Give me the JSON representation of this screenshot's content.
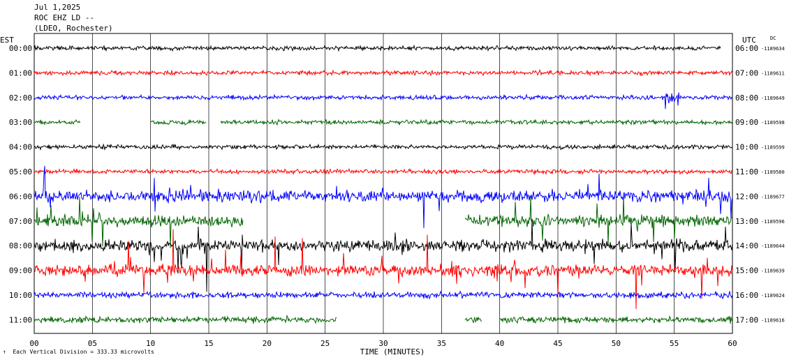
{
  "header": {
    "date": "Jul 1,2025",
    "station": "ROC EHZ LD --",
    "network": "(LDEO, Rochester)"
  },
  "footer": {
    "scale_note": "Each Vertical Division = 333.33 microvolts",
    "scale_mark": "↑"
  },
  "chart_data": {
    "type": "line",
    "title": "",
    "xlabel": "TIME (MINUTES)",
    "xlim": [
      0,
      60
    ],
    "x_ticks": [
      "00",
      "05",
      "10",
      "15",
      "20",
      "25",
      "30",
      "35",
      "40",
      "45",
      "50",
      "55",
      "60"
    ],
    "grid": true,
    "left_axis_label": "EST",
    "right_axis_label": "UTC",
    "dc_label": "DC",
    "trace_colors": [
      "#000000",
      "#ff0000",
      "#0000ff",
      "#006400"
    ],
    "traces": [
      {
        "est": "00:00",
        "utc": "06:00",
        "dc": "-1189634",
        "color": "#000000",
        "activity": "quiet",
        "end_minute": 59
      },
      {
        "est": "01:00",
        "utc": "07:00",
        "dc": "-1189611",
        "color": "#ff0000",
        "activity": "quiet"
      },
      {
        "est": "02:00",
        "utc": "08:00",
        "dc": "-1189649",
        "color": "#0000ff",
        "activity": "quiet",
        "burst_minute": 54.8
      },
      {
        "est": "03:00",
        "utc": "09:00",
        "dc": "-1189598",
        "color": "#006400",
        "activity": "quiet",
        "gaps": [
          [
            4,
            10
          ],
          [
            14.8,
            16
          ]
        ]
      },
      {
        "est": "04:00",
        "utc": "10:00",
        "dc": "-1189599",
        "color": "#000000",
        "activity": "quiet"
      },
      {
        "est": "05:00",
        "utc": "11:00",
        "dc": "-1189580",
        "color": "#ff0000",
        "activity": "quiet"
      },
      {
        "est": "06:00",
        "utc": "12:00",
        "dc": "-1189677",
        "color": "#0000ff",
        "activity": "noisy"
      },
      {
        "est": "07:00",
        "utc": "13:00",
        "dc": "-1189596",
        "color": "#006400",
        "activity": "noisy",
        "gaps": [
          [
            18,
            37
          ]
        ]
      },
      {
        "est": "08:00",
        "utc": "14:00",
        "dc": "-1189644",
        "color": "#000000",
        "activity": "noisy"
      },
      {
        "est": "09:00",
        "utc": "15:00",
        "dc": "-1189639",
        "color": "#ff0000",
        "activity": "noisy"
      },
      {
        "est": "10:00",
        "utc": "16:00",
        "dc": "-1189624",
        "color": "#0000ff",
        "activity": "moderate"
      },
      {
        "est": "11:00",
        "utc": "17:00",
        "dc": "-1189616",
        "color": "#006400",
        "activity": "moderate",
        "gaps": [
          [
            26,
            37
          ],
          [
            38.5,
            40
          ]
        ]
      }
    ]
  }
}
